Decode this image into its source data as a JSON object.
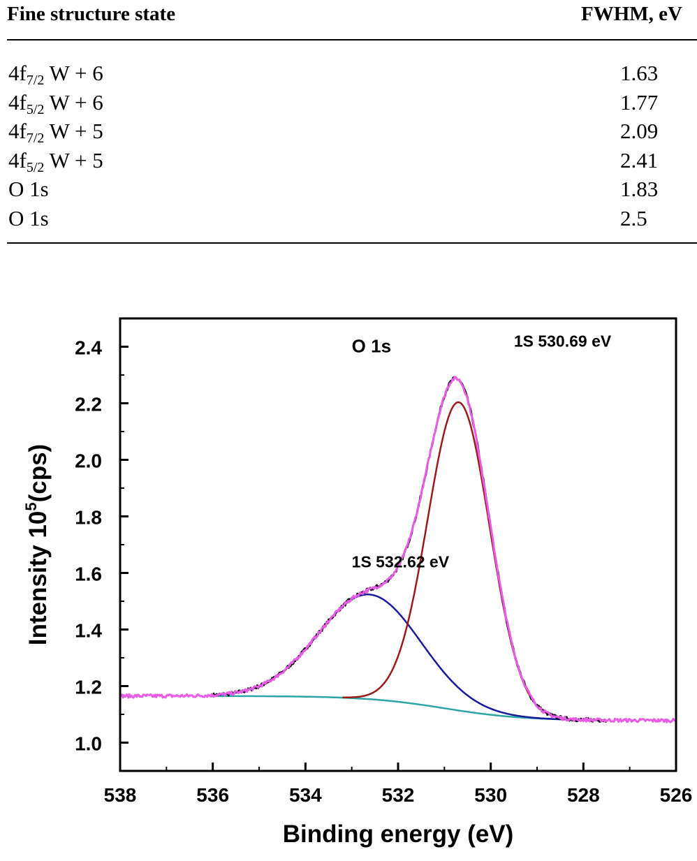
{
  "table": {
    "headers": {
      "state": "Fine structure state",
      "fwhm": "FWHM, eV"
    },
    "rows": [
      {
        "orbital": "4f",
        "sub": "7/2",
        "rest": " W + 6",
        "fwhm": "1.63"
      },
      {
        "orbital": "4f",
        "sub": "5/2",
        "rest": " W + 6",
        "fwhm": "1.77"
      },
      {
        "orbital": "4f",
        "sub": "7/2",
        "rest": " W + 5",
        "fwhm": "2.09"
      },
      {
        "orbital": "4f",
        "sub": "5/2",
        "rest": " W + 5",
        "fwhm": "2.41"
      },
      {
        "orbital": "O 1s",
        "sub": "",
        "rest": "",
        "fwhm": "1.83"
      },
      {
        "orbital": "O 1s",
        "sub": "",
        "rest": "",
        "fwhm": "2.5"
      }
    ]
  },
  "chart_data": {
    "type": "line",
    "xlabel": "Binding energy (eV)",
    "ylabel_main": "Intensity 10",
    "ylabel_sup": "5",
    "ylabel_tail": "(cps)",
    "xlim": [
      538,
      526
    ],
    "ylim": [
      0.9,
      2.5
    ],
    "x_ticks": [
      538,
      536,
      534,
      532,
      530,
      528,
      526
    ],
    "y_ticks": [
      1.0,
      1.2,
      1.4,
      1.6,
      1.8,
      2.0,
      2.2,
      2.4
    ],
    "annotations": [
      {
        "text": "O 1s",
        "x": 533.0,
        "y": 2.38
      },
      {
        "text": "1S 530.69 eV",
        "x": 529.5,
        "y": 2.4
      },
      {
        "text": "1S 532.62 eV",
        "x": 533.0,
        "y": 1.62
      }
    ],
    "components": [
      {
        "kind": "baseline",
        "color": "#2aa6a6",
        "high": 1.165,
        "low": 1.078,
        "center": 531.0,
        "width": 0.85,
        "x_from": 536.0,
        "x_to": 527.6
      },
      {
        "kind": "peak",
        "color": "#1a1a9c",
        "center": 532.62,
        "amplitude": 0.37,
        "sigma": 1.1,
        "x_from": 536.0,
        "x_to": 527.6
      },
      {
        "kind": "peak",
        "color": "#9c1a1a",
        "center": 530.69,
        "amplitude": 1.09,
        "sigma": 0.67,
        "x_from": 533.2,
        "x_to": 527.6
      },
      {
        "kind": "raw",
        "color": "#000000",
        "x_from": 536.0,
        "x_to": 527.5
      },
      {
        "kind": "envelope",
        "color": "#e85ce6",
        "x_from": 538.0,
        "x_to": 526.0
      }
    ]
  }
}
